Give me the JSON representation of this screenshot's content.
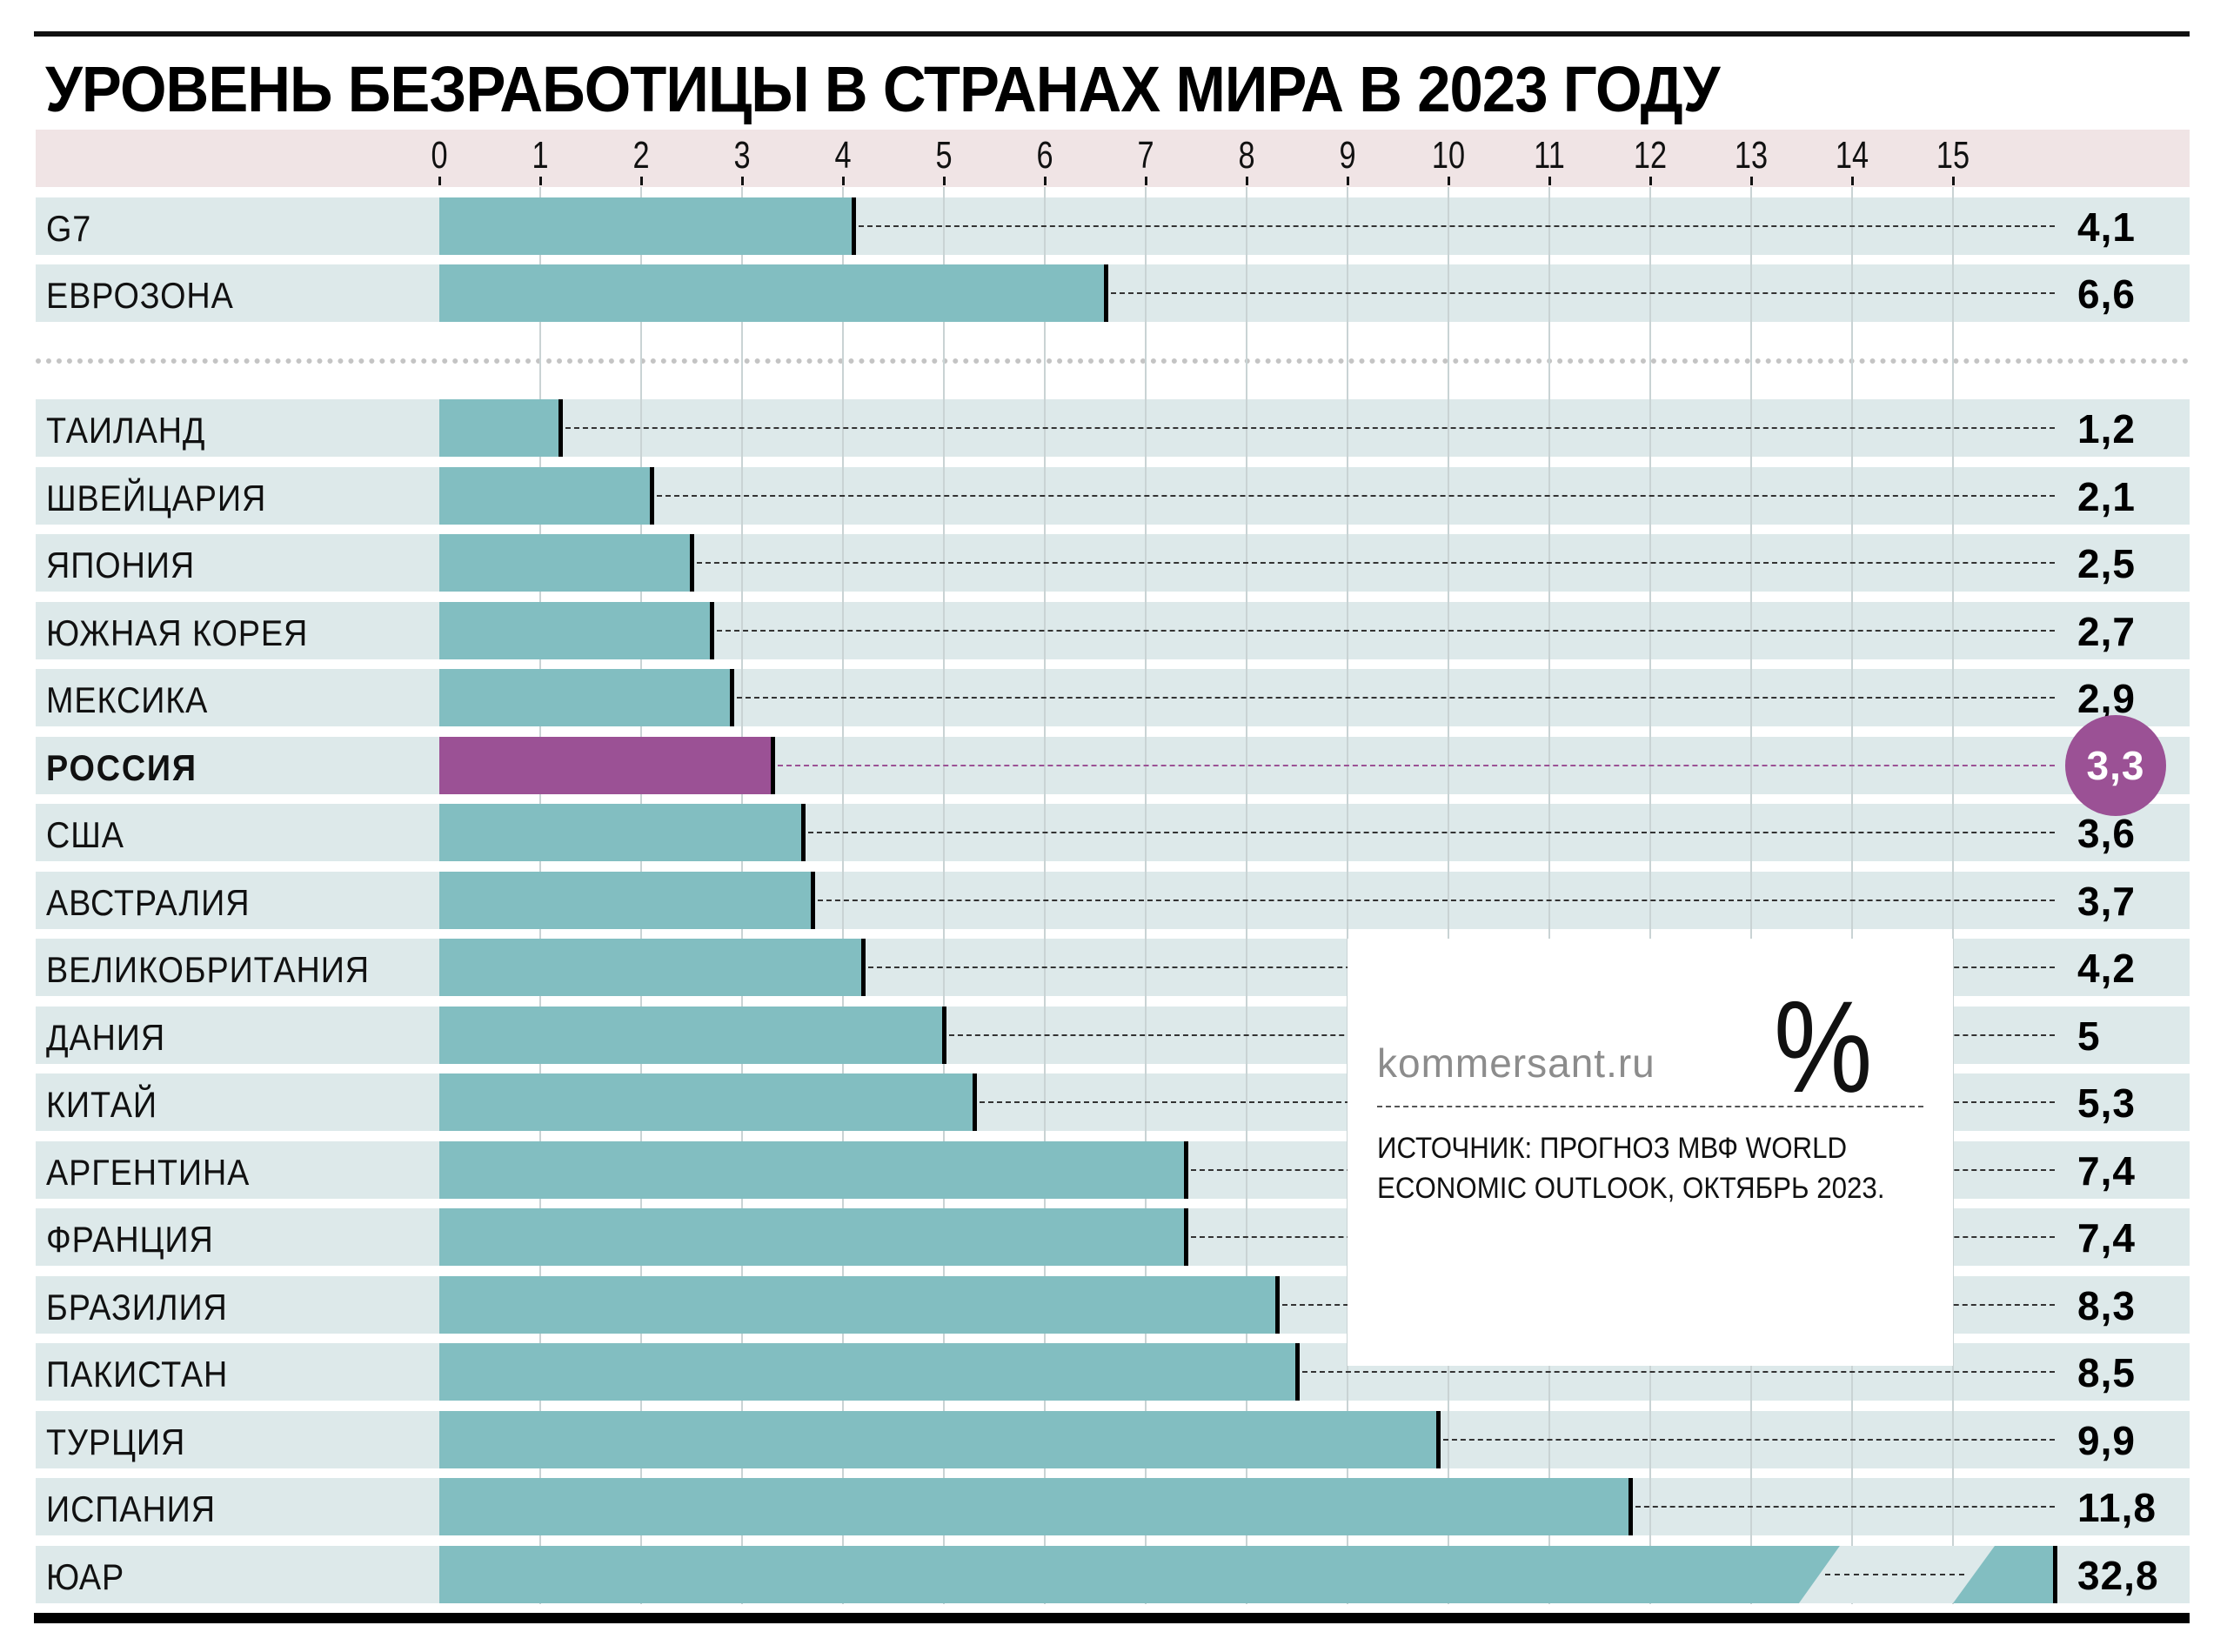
{
  "chart_data": {
    "type": "bar",
    "orientation": "horizontal",
    "title": "УРОВЕНЬ БЕЗРАБОТИЦЫ В СТРАНАХ МИРА В 2023 ГОДУ",
    "xlabel": "",
    "ylabel": "",
    "unit": "%",
    "xlim": [
      0,
      15
    ],
    "x_ticks": [
      "0",
      "1",
      "2",
      "3",
      "4",
      "5",
      "6",
      "7",
      "8",
      "9",
      "10",
      "11",
      "12",
      "13",
      "14",
      "15"
    ],
    "grid": true,
    "groups": [
      {
        "name": "aggregates",
        "categories": [
          "G7",
          "ЕВРОЗОНА"
        ],
        "values": [
          4.1,
          6.6
        ],
        "labels": [
          "4,1",
          "6,6"
        ]
      },
      {
        "name": "countries",
        "categories": [
          "ТАИЛАНД",
          "ШВЕЙЦАРИЯ",
          "ЯПОНИЯ",
          "ЮЖНАЯ КОРЕЯ",
          "МЕКСИКА",
          "РОССИЯ",
          "США",
          "АВСТРАЛИЯ",
          "ВЕЛИКОБРИТАНИЯ",
          "ДАНИЯ",
          "КИТАЙ",
          "АРГЕНТИНА",
          "ФРАНЦИЯ",
          "БРАЗИЛИЯ",
          "ПАКИСТАН",
          "ТУРЦИЯ",
          "ИСПАНИЯ",
          "ЮАР"
        ],
        "values": [
          1.2,
          2.1,
          2.5,
          2.7,
          2.9,
          3.3,
          3.6,
          3.7,
          4.2,
          5,
          5.3,
          7.4,
          7.4,
          8.3,
          8.5,
          9.9,
          11.8,
          32.8
        ],
        "labels": [
          "1,2",
          "2,1",
          "2,5",
          "2,7",
          "2,9",
          "3,3",
          "3,6",
          "3,7",
          "4,2",
          "5",
          "5,3",
          "7,4",
          "7,4",
          "8,3",
          "8,5",
          "9,9",
          "11,8",
          "32,8"
        ],
        "highlight": "РОССИЯ",
        "axis_break": "ЮАР"
      }
    ],
    "colors": {
      "bar": "#82bec1",
      "highlight": "#9b5195",
      "row_background": "#dde9ea",
      "axis_band": "#f0e4e5"
    },
    "annotation": {
      "site": "kommersant.ru",
      "symbol": "%",
      "source_line1": "ИСТОЧНИК: ПРОГНОЗ МВФ WORLD",
      "source_line2": "ECONOMIC OUTLOOK, ОКТЯБРЬ 2023."
    }
  }
}
